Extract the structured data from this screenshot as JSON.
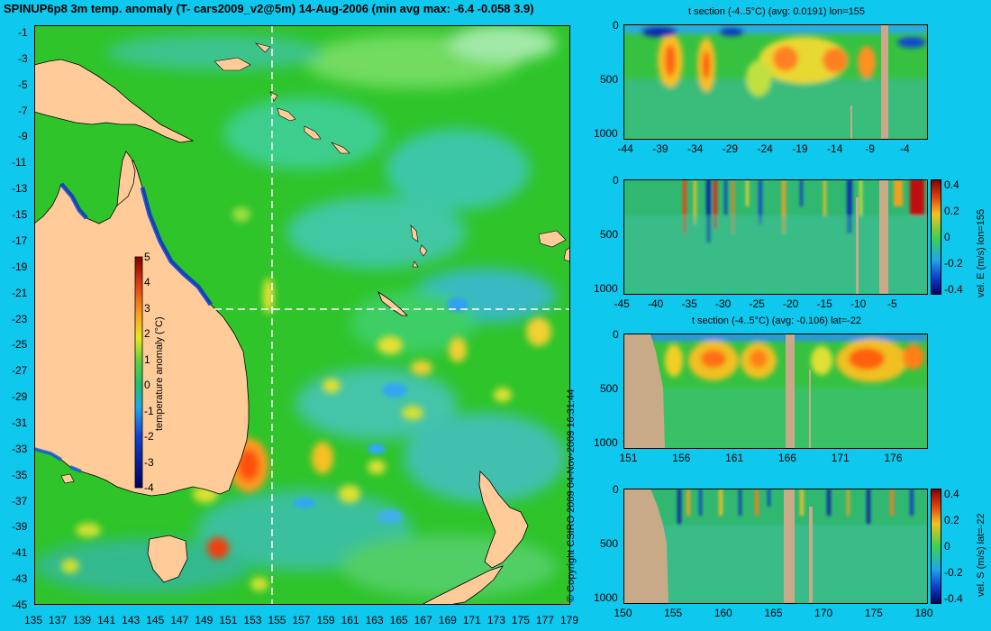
{
  "main_title": "SPINUP6p8 3m temp. anomaly (T- cars2009_v2@5m) 14-Aug-2006 (min avg max: -6.4 -0.058 3.9)",
  "copyright": "© Copyright CSIRO 2009   04-Nov-2009 16:31:44",
  "colors": {
    "background": "#0fc8ee",
    "land": "#ffcc99",
    "section_land": "#c8aa88",
    "ocean_base": "#22c022",
    "section_line": "#ffffff"
  },
  "map": {
    "lon_labels": [
      "135",
      "137",
      "139",
      "141",
      "143",
      "145",
      "147",
      "149",
      "151",
      "153",
      "155",
      "157",
      "159",
      "161",
      "163",
      "165",
      "167",
      "169",
      "171",
      "173",
      "175",
      "177",
      "179"
    ],
    "lat_labels": [
      "-1",
      "-3",
      "-5",
      "-7",
      "-9",
      "-11",
      "-13",
      "-15",
      "-17",
      "-19",
      "-21",
      "-23",
      "-25",
      "-27",
      "-29",
      "-31",
      "-33",
      "-35",
      "-37",
      "-39",
      "-41",
      "-43",
      "-45"
    ],
    "colorbar": {
      "label": "temperature anomaly (°C)",
      "ticks": [
        "5",
        "4",
        "3",
        "2",
        "1",
        "0",
        "-1",
        "-2",
        "-3",
        "-4"
      ]
    }
  },
  "panels": [
    {
      "id": "t-section-lon",
      "title": "t section (-4..5°C) (avg: 0.0191) lon=155",
      "y_ticks": [
        "0",
        "500",
        "1000"
      ],
      "x_ticks": [
        "-44",
        "-39",
        "-34",
        "-29",
        "-24",
        "-19",
        "-14",
        "-9",
        "-4"
      ],
      "colorbar": null
    },
    {
      "id": "vel-e",
      "title": "",
      "y_ticks": [
        "0",
        "500",
        "1000"
      ],
      "x_ticks": [
        "-45",
        "-40",
        "-35",
        "-30",
        "-25",
        "-20",
        "-15",
        "-10",
        "-5"
      ],
      "colorbar": {
        "label": "vel. E (m/s) lon=155",
        "ticks": [
          "0.4",
          "0.2",
          "0",
          "-0.2",
          "-0.4"
        ]
      }
    },
    {
      "id": "t-section-lat",
      "title": "t section (-4..5°C) (avg: -0.106) lat=-22",
      "y_ticks": [
        "0",
        "500",
        "1000"
      ],
      "x_ticks": [
        "151",
        "156",
        "161",
        "166",
        "171",
        "176"
      ],
      "colorbar": null
    },
    {
      "id": "vel-s",
      "title": "",
      "y_ticks": [
        "0",
        "500",
        "1000"
      ],
      "x_ticks": [
        "150",
        "155",
        "160",
        "165",
        "170",
        "175",
        "180"
      ],
      "colorbar": {
        "label": "vel. S (m/s) lat=-22",
        "ticks": [
          "0.4",
          "0.2",
          "0",
          "-0.2",
          "-0.4"
        ]
      }
    }
  ]
}
